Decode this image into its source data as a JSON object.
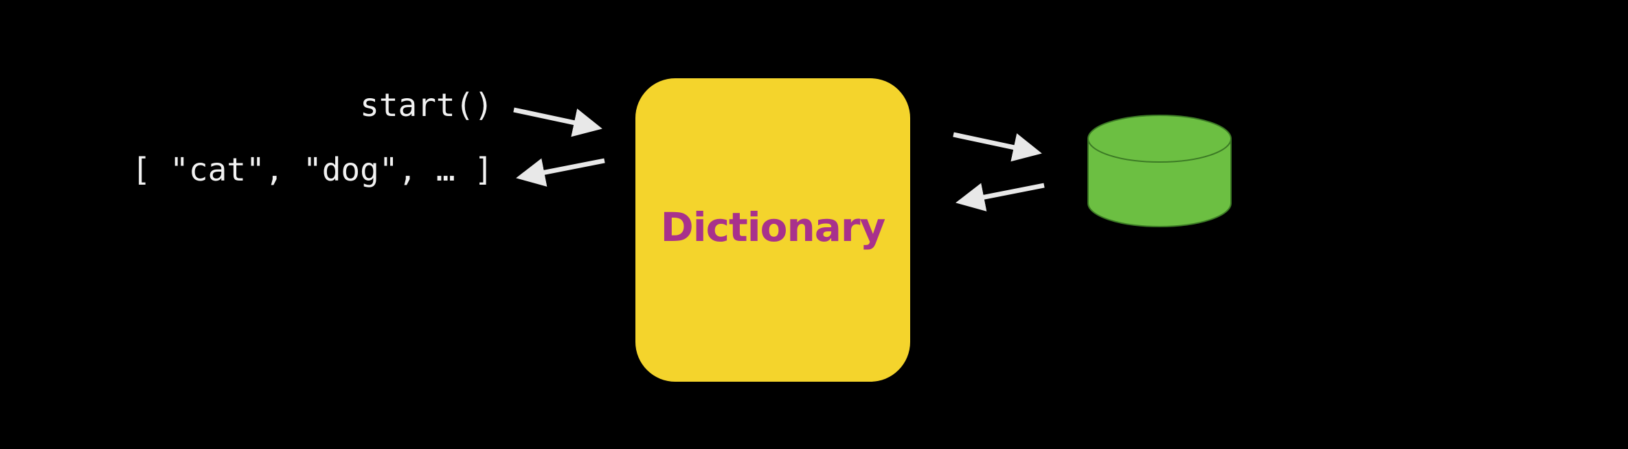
{
  "call": {
    "text": "start()"
  },
  "result": {
    "text": "[ \"cat\", \"dog\", … ]"
  },
  "dictionary": {
    "label": "Dictionary"
  },
  "colors": {
    "background": "#000000",
    "text": "#f2f2f2",
    "arrow": "#e8e8e8",
    "dictionary_fill": "#f4d42c",
    "dictionary_text": "#a8318c",
    "database_fill": "#6cbf42",
    "database_stroke": "#3c7a25"
  },
  "icons": {
    "database": "database-icon"
  }
}
